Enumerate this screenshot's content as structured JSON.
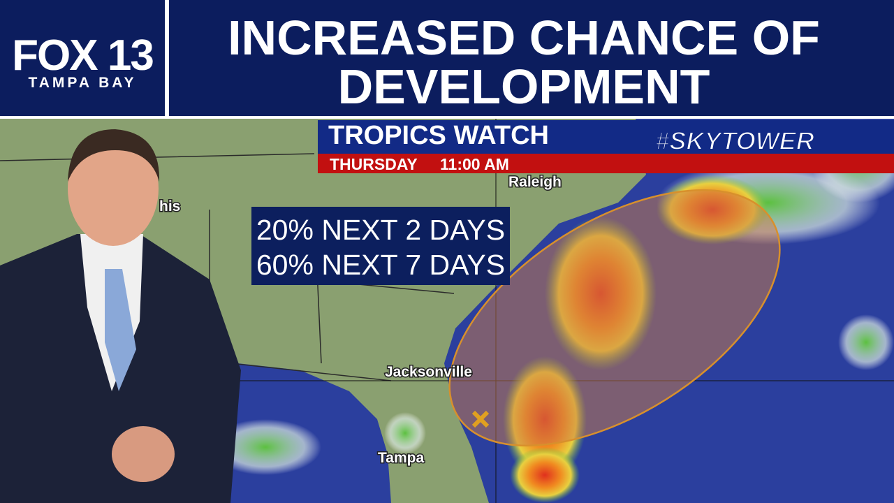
{
  "header": {
    "logo": {
      "name": "FOX 13",
      "region": "TAMPA BAY"
    },
    "headline": [
      "INCREASED CHANCE OF",
      "DEVELOPMENT"
    ]
  },
  "map": {
    "banner": {
      "title": "TROPICS WATCH",
      "brand": "#SKYTOWER",
      "day": "THURSDAY",
      "time": "11:00 AM"
    },
    "outlook": [
      "20% NEXT 2 DAYS",
      "60% NEXT 7 DAYS"
    ],
    "cities": [
      "Raleigh",
      "his",
      "Jacksonville",
      "Tampa"
    ]
  }
}
